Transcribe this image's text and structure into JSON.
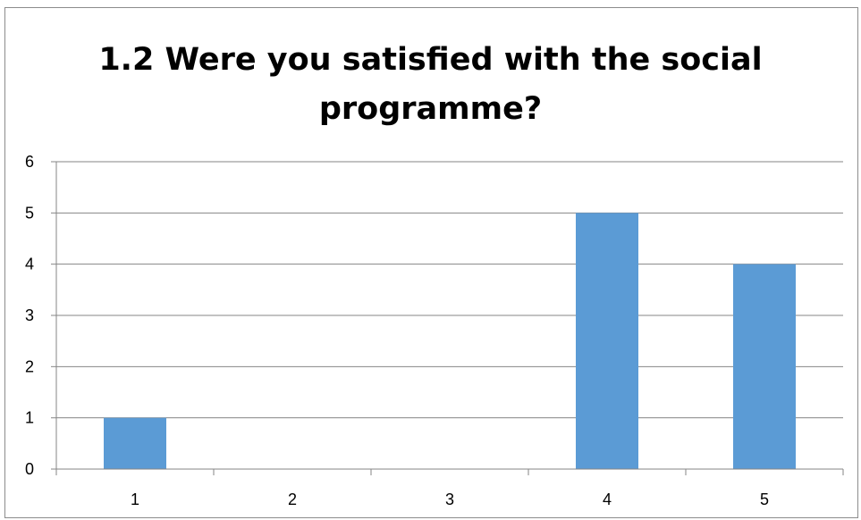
{
  "chart_data": {
    "type": "bar",
    "title": "1.2 Were you satisfied with the social programme?",
    "title_lines": [
      "1.2 Were you satisfied with the social",
      "programme?"
    ],
    "xlabel": "",
    "ylabel": "",
    "categories": [
      "1",
      "2",
      "3",
      "4",
      "5"
    ],
    "values": [
      1,
      0,
      0,
      5,
      4
    ],
    "ylim": [
      0,
      6
    ],
    "yticks": [
      "0",
      "1",
      "2",
      "3",
      "4",
      "5",
      "6"
    ],
    "grid": true,
    "legend": "none",
    "bar_color": "#5b9bd5",
    "grid_color": "#868686",
    "axis_color": "#868686"
  }
}
